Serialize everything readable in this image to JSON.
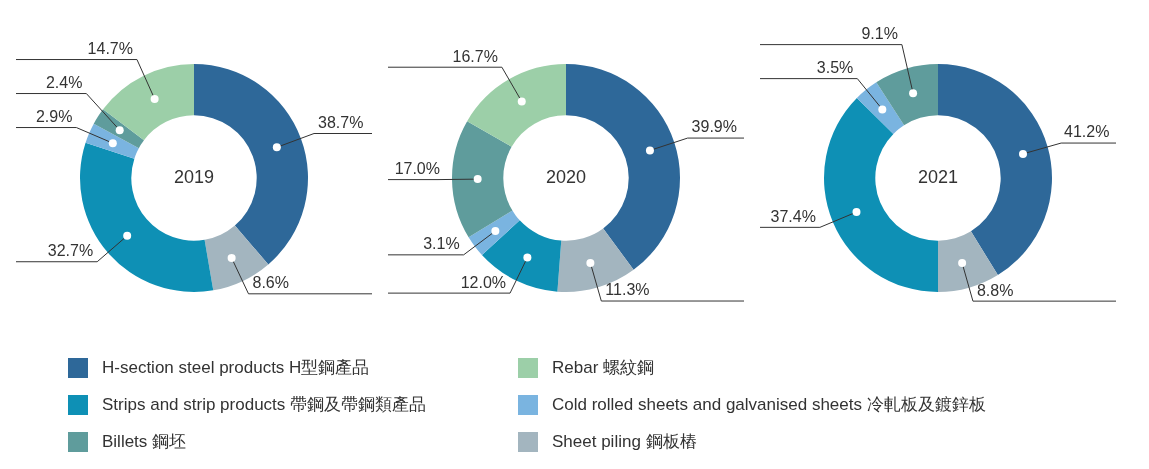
{
  "chart_data": [
    {
      "type": "donut",
      "title": "2019",
      "categories": [
        "H-section steel products H型鋼產品",
        "Sheet piling 鋼板樁",
        "Strips and strip products 帶鋼及帶鋼類產品",
        "Cold rolled sheets and galvanised sheets 冷軋板及鍍鋅板",
        "Billets 鋼坯",
        "Rebar 螺紋鋼"
      ],
      "values": [
        38.7,
        8.6,
        32.7,
        2.9,
        2.4,
        14.7
      ],
      "colors": [
        "#2e6899",
        "#a3b5bf",
        "#0e90b5",
        "#7ab4e0",
        "#5f9c9c",
        "#9ccfa8"
      ],
      "value_labels": [
        "38.7%",
        "8.6%",
        "32.7%",
        "2.9%",
        "2.4%",
        "14.7%"
      ],
      "legend": "bottom"
    },
    {
      "type": "donut",
      "title": "2020",
      "categories": [
        null,
        null,
        null,
        null,
        null,
        null
      ],
      "values": [
        39.9,
        11.3,
        12.0,
        3.1,
        17.0,
        16.7
      ],
      "colors": [
        "#2e6899",
        "#a3b5bf",
        "#0e90b5",
        "#7ab4e0",
        "#5f9c9c",
        "#9ccfa8"
      ],
      "value_labels": [
        "39.9%",
        "11.3%",
        "12.0%",
        "3.1%",
        "17.0%",
        "16.7%"
      ]
    },
    {
      "type": "donut",
      "title": "2021",
      "categories": [
        null,
        null,
        null,
        null,
        null
      ],
      "values": [
        41.2,
        8.8,
        37.4,
        3.5,
        9.1
      ],
      "colors": [
        "#2e6899",
        "#a3b5bf",
        "#0e90b5",
        "#7ab4e0",
        "#5f9c9c"
      ],
      "value_labels": [
        "41.2%",
        "8.8%",
        "37.4%",
        "3.5%",
        "9.1%"
      ]
    }
  ]
}
